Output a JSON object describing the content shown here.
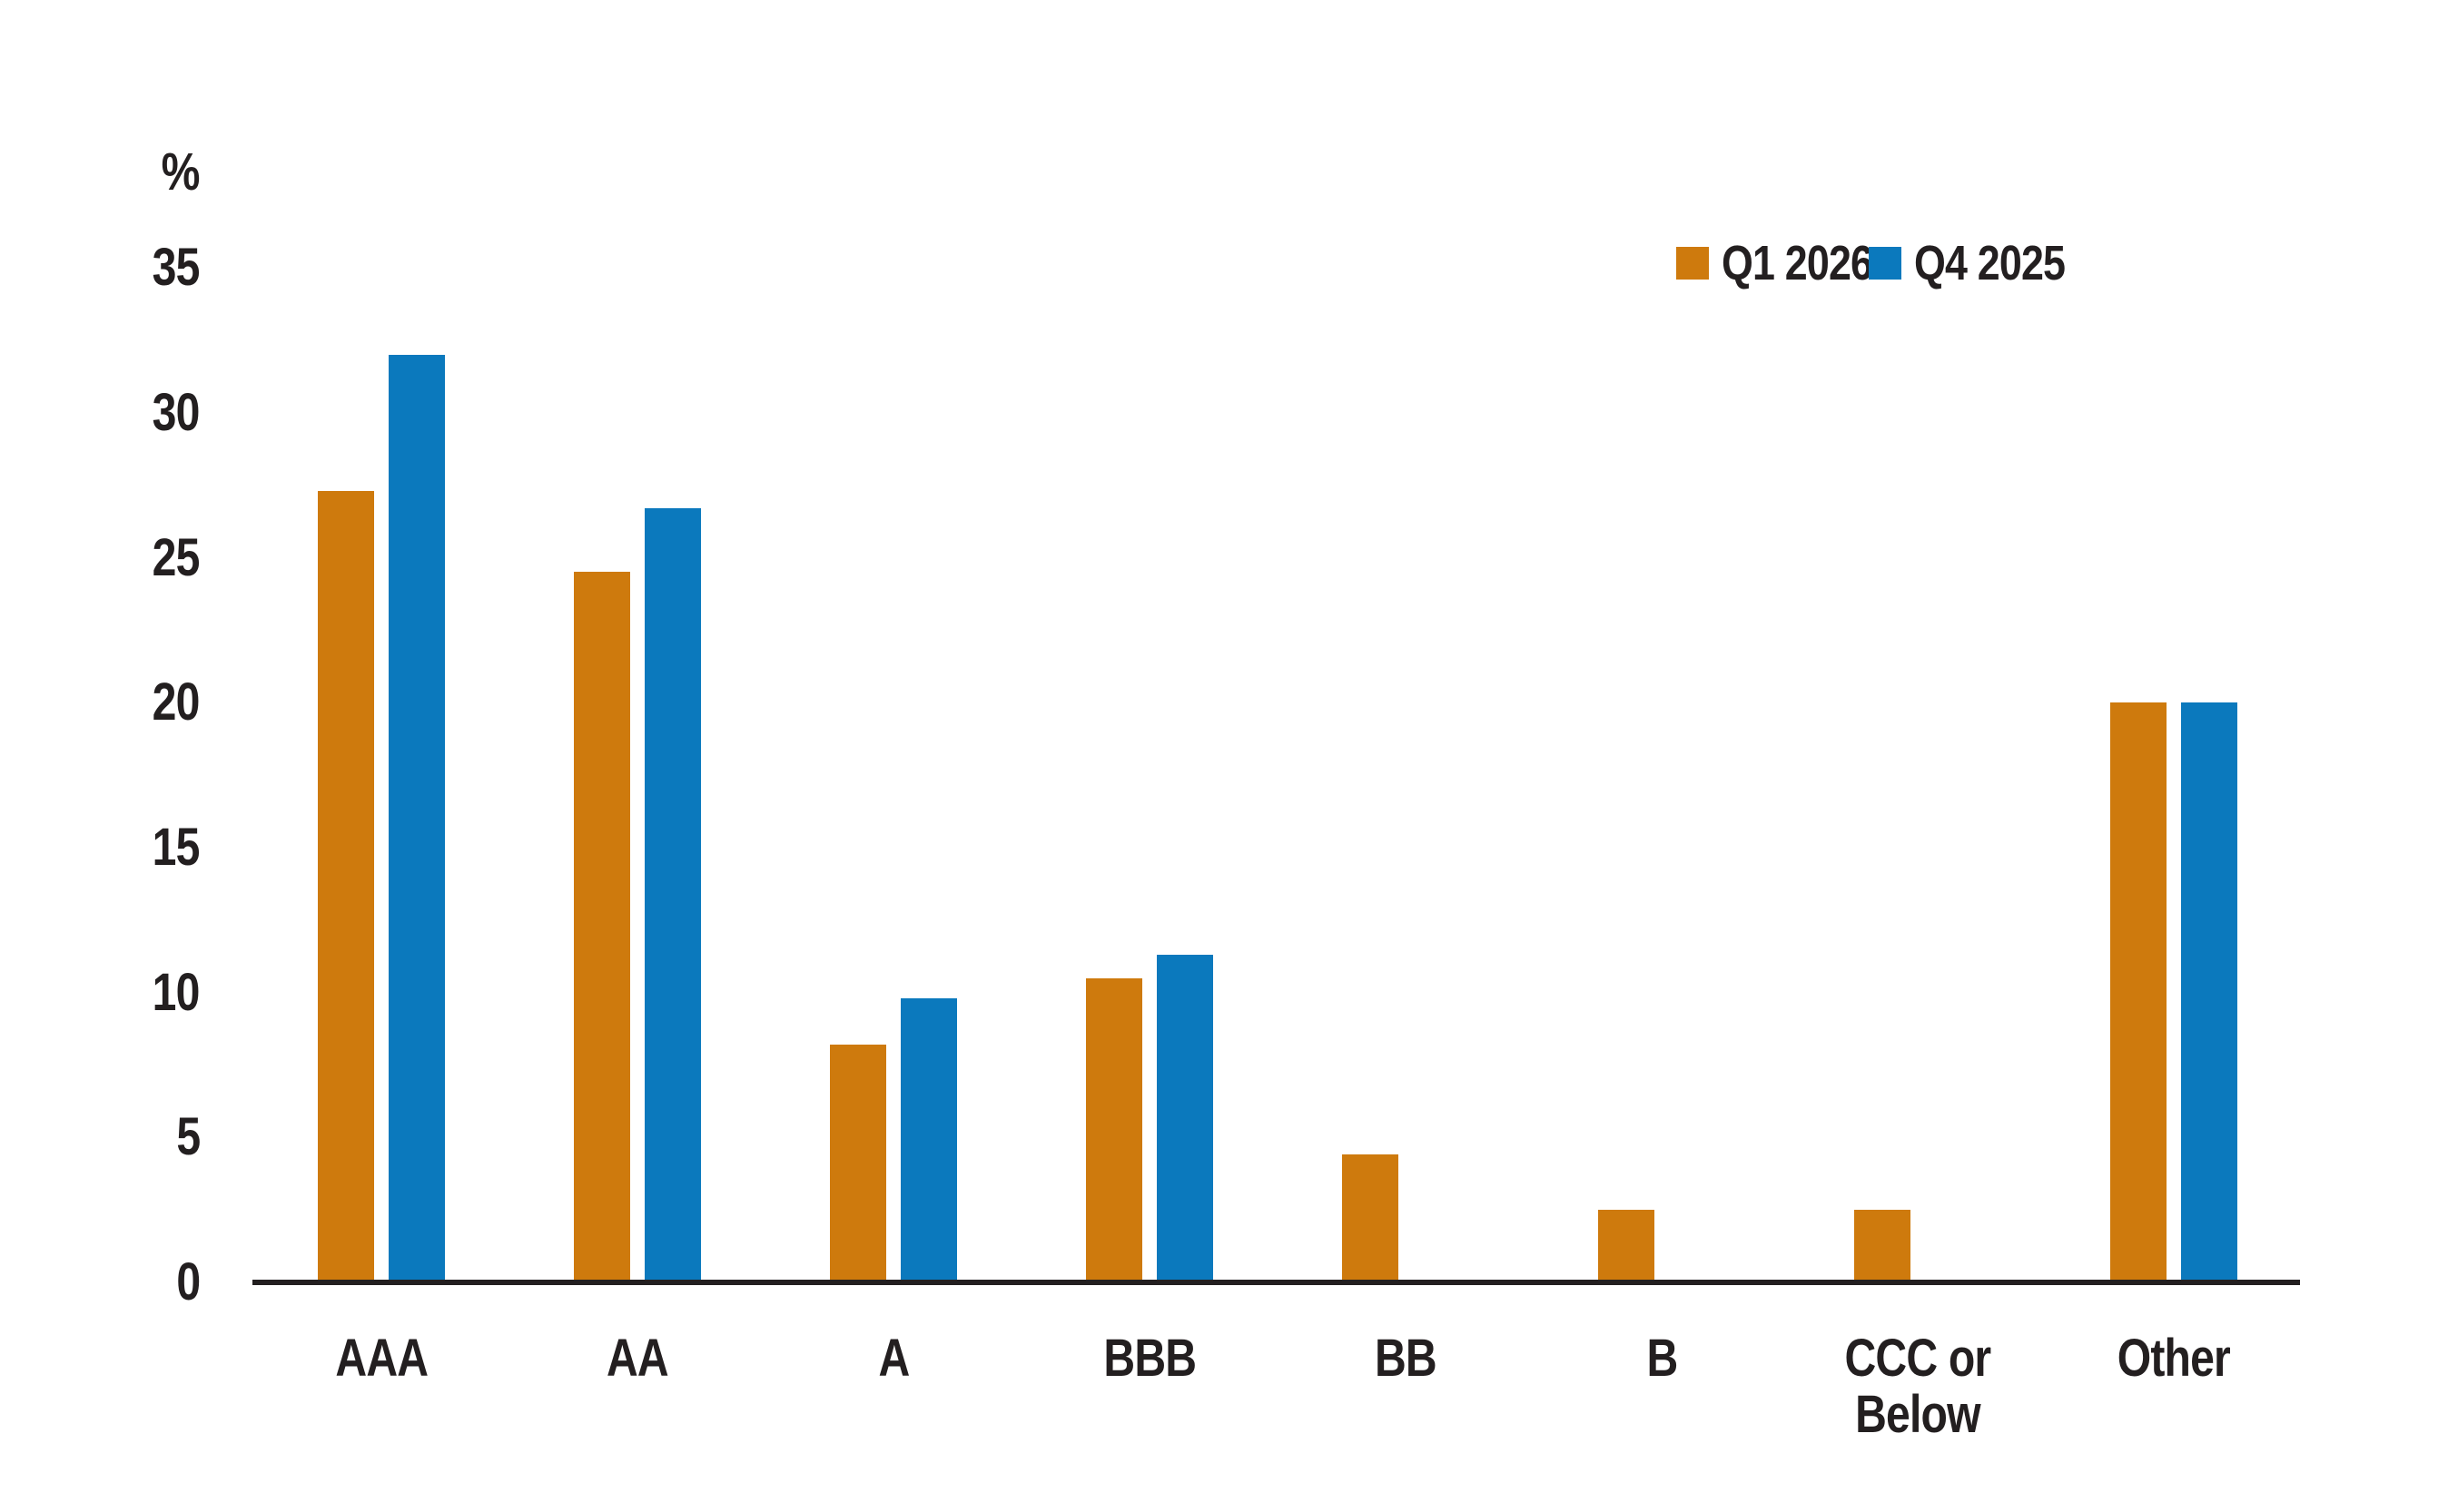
{
  "chart_data": {
    "type": "bar",
    "title": "",
    "xlabel": "",
    "ylabel": "%",
    "ylim": [
      0,
      35
    ],
    "yticks": [
      0,
      5,
      10,
      15,
      20,
      25,
      30,
      35
    ],
    "grid": false,
    "legend_position": "top-right",
    "categories": [
      "AAA",
      "AA",
      "A",
      "BBB",
      "BB",
      "B",
      "CCC or\nBelow",
      "Other"
    ],
    "series": [
      {
        "name": "Q1 2026",
        "color": "#ce7a0d",
        "values": [
          27.3,
          24.5,
          8.2,
          10.5,
          4.4,
          2.5,
          2.5,
          20.0
        ]
      },
      {
        "name": "Q4 2025",
        "color": "#0b79bd",
        "values": [
          32.0,
          26.7,
          9.8,
          11.3,
          0,
          0,
          0,
          20.0
        ]
      }
    ],
    "axis_color": "#231f20",
    "text_color": "#231f20"
  }
}
